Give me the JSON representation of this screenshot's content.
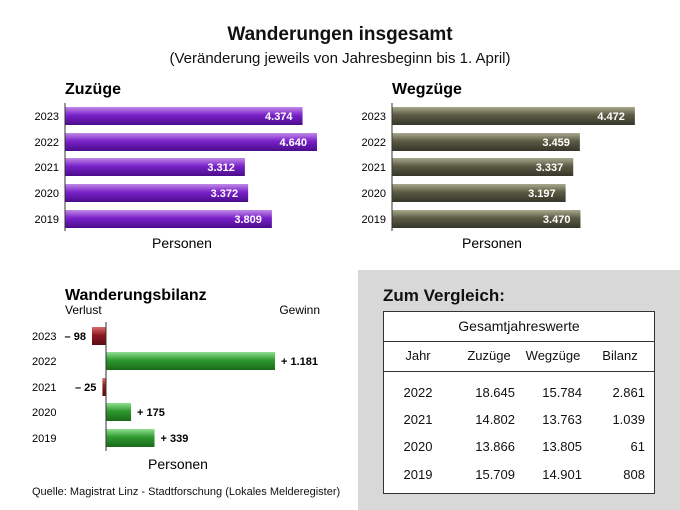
{
  "title": "Wanderungen insgesamt",
  "subtitle": "(Veränderung jeweils von Jahresbeginn bis 1. April)",
  "source": "Quelle: Magistrat Linz - Stadtforschung (Lokales Melderegister)",
  "colors": {
    "zuzuege": "#7a22c9",
    "wegzuege": "#5b5b44",
    "gewinn": "#2f9a2f",
    "verlust": "#8e1a22"
  },
  "chart_data": [
    {
      "type": "bar",
      "orientation": "horizontal",
      "title": "Zuzüge",
      "xlabel": "Personen",
      "categories": [
        "2023",
        "2022",
        "2021",
        "2020",
        "2019"
      ],
      "values": [
        4374,
        4640,
        3312,
        3372,
        3809
      ],
      "data_labels": [
        "4.374",
        "4.640",
        "3.312",
        "3.372",
        "3.809"
      ],
      "xlim": [
        0,
        4640
      ]
    },
    {
      "type": "bar",
      "orientation": "horizontal",
      "title": "Wegzüge",
      "xlabel": "Personen",
      "categories": [
        "2023",
        "2022",
        "2021",
        "2020",
        "2019"
      ],
      "values": [
        4472,
        3459,
        3337,
        3197,
        3470
      ],
      "data_labels": [
        "4.472",
        "3.459",
        "3.337",
        "3.197",
        "3.470"
      ],
      "xlim": [
        0,
        4640
      ]
    },
    {
      "type": "bar",
      "orientation": "horizontal",
      "title": "Wanderungsbilanz",
      "left_label": "Verlust",
      "right_label": "Gewinn",
      "xlabel": "Personen",
      "categories": [
        "2023",
        "2022",
        "2021",
        "2020",
        "2019"
      ],
      "values": [
        -98,
        1181,
        -25,
        175,
        339
      ],
      "data_labels": [
        "– 98",
        "+ 1.181",
        "– 25",
        "+ 175",
        "+ 339"
      ],
      "xlim": [
        -98,
        1181
      ]
    }
  ],
  "vergleich": {
    "title": "Zum Vergleich:",
    "caption": "Gesamtjahreswerte",
    "headers": [
      "Jahr",
      "Zuzüge",
      "Wegzüge",
      "Bilanz"
    ],
    "rows": [
      [
        "2022",
        "18.645",
        "15.784",
        "2.861"
      ],
      [
        "2021",
        "14.802",
        "13.763",
        "1.039"
      ],
      [
        "2020",
        "13.866",
        "13.805",
        "61"
      ],
      [
        "2019",
        "15.709",
        "14.901",
        "808"
      ]
    ]
  }
}
